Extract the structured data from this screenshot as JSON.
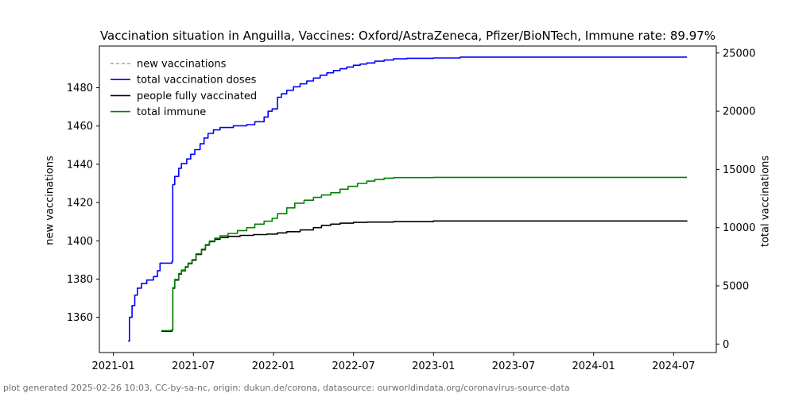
{
  "footer": "plot generated 2025-02-26 10:03, CC-by-sa-nc, origin: dukun.de/corona, datasource: ourworldindata.org/coronavirus-source-data",
  "chart_data": {
    "type": "line",
    "title": "Vaccination situation in Anguilla, Vaccines: Oxford/AstraZeneca, Pfizer/BioNTech, Immune rate: 89.97%",
    "xlabel": "",
    "ylabel_left": "new vaccinations",
    "ylabel_right": "total vaccinations",
    "grid": false,
    "legend_position": "upper-left",
    "x_unit": "month index, 0 = 2021-01",
    "x_range_months": [
      -1.05,
      45.2
    ],
    "x_ticks": {
      "month_index": [
        0,
        6,
        12,
        18,
        24,
        30,
        36,
        42
      ],
      "labels": [
        "2021-01",
        "2021-07",
        "2022-01",
        "2022-07",
        "2023-01",
        "2023-07",
        "2024-01",
        "2024-07"
      ]
    },
    "left_axis": {
      "ticks": [
        1360,
        1380,
        1400,
        1420,
        1440,
        1460,
        1480
      ],
      "range": [
        1341.6,
        1501.8
      ]
    },
    "right_axis": {
      "ticks": [
        0,
        5000,
        10000,
        15000,
        20000,
        25000
      ],
      "range": [
        -730,
        25600
      ]
    },
    "series": [
      {
        "name": "new vaccinations",
        "axis": "left",
        "color": "#a0a0a0",
        "line_style": "dashed",
        "points_month_value": [],
        "note": "listed in legend; no visible trace in plot area"
      },
      {
        "name": "total vaccination doses",
        "axis": "right",
        "color": "#0000ff",
        "line_style": "solid",
        "points_month_value": [
          [
            1.1,
            250
          ],
          [
            1.2,
            2300
          ],
          [
            1.4,
            3300
          ],
          [
            1.6,
            4200
          ],
          [
            1.8,
            4800
          ],
          [
            2.1,
            5200
          ],
          [
            2.5,
            5500
          ],
          [
            3.0,
            5800
          ],
          [
            3.3,
            6300
          ],
          [
            3.5,
            6950
          ],
          [
            4.4,
            7100
          ],
          [
            4.45,
            13700
          ],
          [
            4.6,
            14400
          ],
          [
            4.9,
            15100
          ],
          [
            5.1,
            15500
          ],
          [
            5.5,
            15900
          ],
          [
            5.8,
            16300
          ],
          [
            6.1,
            16700
          ],
          [
            6.5,
            17200
          ],
          [
            6.8,
            17700
          ],
          [
            7.1,
            18100
          ],
          [
            7.5,
            18400
          ],
          [
            8.0,
            18600
          ],
          [
            9.0,
            18750
          ],
          [
            10.0,
            18850
          ],
          [
            10.6,
            19100
          ],
          [
            11.3,
            19500
          ],
          [
            11.6,
            20000
          ],
          [
            11.9,
            20200
          ],
          [
            12.3,
            21200
          ],
          [
            12.6,
            21500
          ],
          [
            13.0,
            21800
          ],
          [
            13.5,
            22100
          ],
          [
            14.0,
            22350
          ],
          [
            14.5,
            22600
          ],
          [
            15.0,
            22850
          ],
          [
            15.5,
            23100
          ],
          [
            16.0,
            23300
          ],
          [
            16.5,
            23500
          ],
          [
            17.0,
            23650
          ],
          [
            17.5,
            23800
          ],
          [
            18.0,
            23950
          ],
          [
            18.5,
            24050
          ],
          [
            19.0,
            24150
          ],
          [
            19.6,
            24300
          ],
          [
            20.3,
            24400
          ],
          [
            21.0,
            24500
          ],
          [
            22.0,
            24550
          ],
          [
            24.0,
            24580
          ],
          [
            26.0,
            24650
          ],
          [
            43.0,
            24650
          ]
        ]
      },
      {
        "name": "people fully vaccinated",
        "axis": "right",
        "color": "#000000",
        "line_style": "solid",
        "points_month_value": [
          [
            3.6,
            1100
          ],
          [
            4.4,
            1200
          ],
          [
            4.45,
            4800
          ],
          [
            4.6,
            5500
          ],
          [
            4.9,
            6000
          ],
          [
            5.1,
            6300
          ],
          [
            5.4,
            6600
          ],
          [
            5.6,
            6900
          ],
          [
            5.9,
            7200
          ],
          [
            6.2,
            7700
          ],
          [
            6.6,
            8100
          ],
          [
            6.9,
            8500
          ],
          [
            7.2,
            8800
          ],
          [
            7.6,
            9000
          ],
          [
            8.0,
            9150
          ],
          [
            8.6,
            9250
          ],
          [
            9.5,
            9330
          ],
          [
            10.5,
            9400
          ],
          [
            11.5,
            9450
          ],
          [
            12.3,
            9550
          ],
          [
            13.0,
            9650
          ],
          [
            14.0,
            9800
          ],
          [
            15.0,
            10000
          ],
          [
            15.6,
            10200
          ],
          [
            16.3,
            10300
          ],
          [
            17.0,
            10380
          ],
          [
            18.0,
            10450
          ],
          [
            19.0,
            10480
          ],
          [
            21.0,
            10520
          ],
          [
            24.0,
            10570
          ],
          [
            43.0,
            10600
          ]
        ]
      },
      {
        "name": "total immune",
        "axis": "right",
        "color": "#008000",
        "line_style": "solid",
        "points_month_value": [
          [
            3.6,
            1150
          ],
          [
            4.4,
            1250
          ],
          [
            4.45,
            4850
          ],
          [
            4.6,
            5550
          ],
          [
            4.9,
            6050
          ],
          [
            5.1,
            6350
          ],
          [
            5.4,
            6650
          ],
          [
            5.6,
            6950
          ],
          [
            5.9,
            7250
          ],
          [
            6.2,
            7750
          ],
          [
            6.6,
            8150
          ],
          [
            6.9,
            8550
          ],
          [
            7.2,
            8850
          ],
          [
            7.6,
            9100
          ],
          [
            8.0,
            9300
          ],
          [
            8.6,
            9500
          ],
          [
            9.3,
            9750
          ],
          [
            10.0,
            10000
          ],
          [
            10.6,
            10300
          ],
          [
            11.3,
            10550
          ],
          [
            11.9,
            10800
          ],
          [
            12.3,
            11200
          ],
          [
            13.0,
            11700
          ],
          [
            13.6,
            12100
          ],
          [
            14.3,
            12350
          ],
          [
            15.0,
            12600
          ],
          [
            15.6,
            12800
          ],
          [
            16.3,
            13000
          ],
          [
            17.0,
            13300
          ],
          [
            17.6,
            13550
          ],
          [
            18.3,
            13800
          ],
          [
            19.0,
            14000
          ],
          [
            19.6,
            14150
          ],
          [
            20.3,
            14250
          ],
          [
            21.0,
            14300
          ],
          [
            24.0,
            14320
          ],
          [
            43.0,
            14320
          ]
        ]
      }
    ]
  }
}
